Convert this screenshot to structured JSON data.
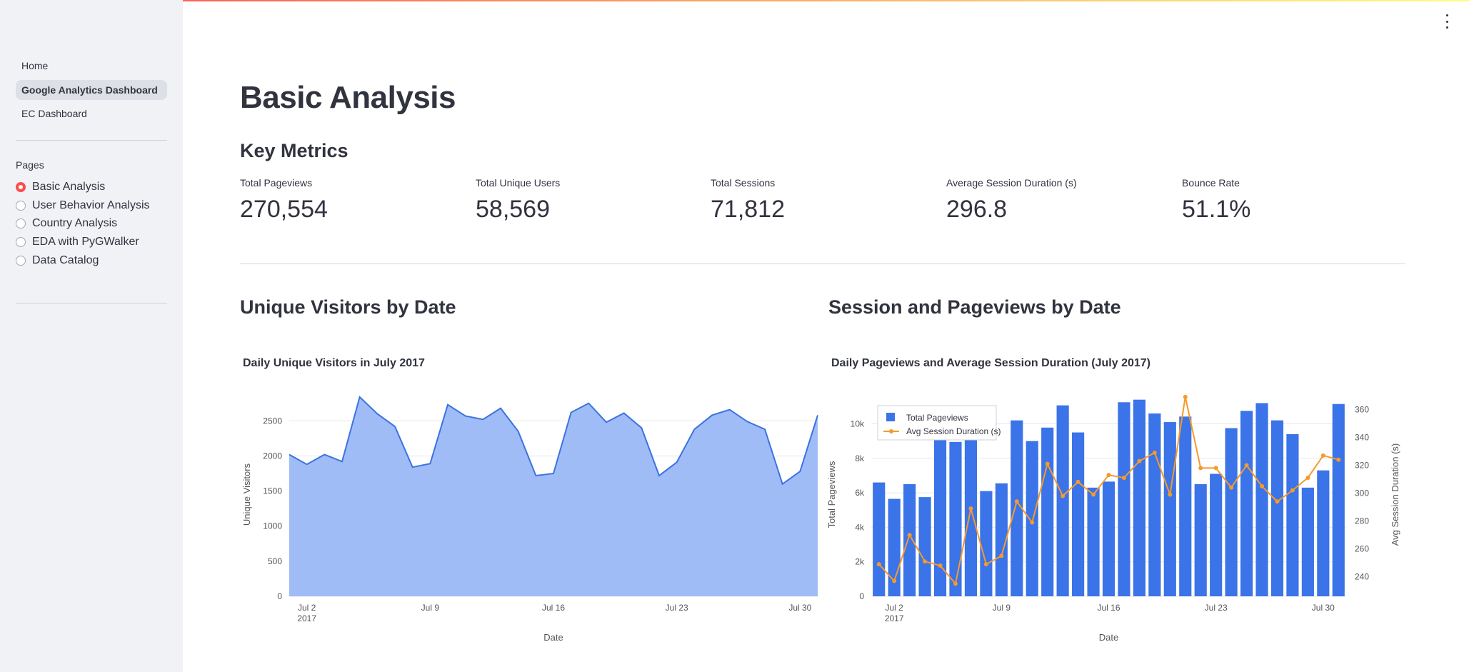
{
  "sidebar": {
    "nav": [
      {
        "label": "Home",
        "active": false
      },
      {
        "label": "Google Analytics Dashboard",
        "active": true
      },
      {
        "label": "EC Dashboard",
        "active": false
      }
    ],
    "pages_label": "Pages",
    "pages": [
      {
        "label": "Basic Analysis",
        "selected": true
      },
      {
        "label": "User Behavior Analysis",
        "selected": false
      },
      {
        "label": "Country Analysis",
        "selected": false
      },
      {
        "label": "EDA with PyGWalker",
        "selected": false
      },
      {
        "label": "Data Catalog",
        "selected": false
      }
    ]
  },
  "main": {
    "title": "Basic Analysis",
    "metrics_heading": "Key Metrics",
    "metrics": [
      {
        "label": "Total Pageviews",
        "value": "270,554"
      },
      {
        "label": "Total Unique Users",
        "value": "58,569"
      },
      {
        "label": "Total Sessions",
        "value": "71,812"
      },
      {
        "label": "Average Session Duration (s)",
        "value": "296.8"
      },
      {
        "label": "Bounce Rate",
        "value": "51.1%"
      }
    ],
    "section_left": "Unique Visitors by Date",
    "section_right": "Session and Pageviews by Date"
  },
  "colors": {
    "accent": "#ff4b4b",
    "area_fill": "#9ab8f5",
    "area_line": "#3b73e0",
    "bar": "#3b73e8",
    "line": "#f59a2c"
  },
  "chart_data": [
    {
      "type": "area",
      "title": "Daily Unique Visitors in July 2017",
      "xlabel": "Date",
      "ylabel": "Unique Visitors",
      "x": [
        "2017-07-01",
        "2017-07-02",
        "2017-07-03",
        "2017-07-04",
        "2017-07-05",
        "2017-07-06",
        "2017-07-07",
        "2017-07-08",
        "2017-07-09",
        "2017-07-10",
        "2017-07-11",
        "2017-07-12",
        "2017-07-13",
        "2017-07-14",
        "2017-07-15",
        "2017-07-16",
        "2017-07-17",
        "2017-07-18",
        "2017-07-19",
        "2017-07-20",
        "2017-07-21",
        "2017-07-22",
        "2017-07-23",
        "2017-07-24",
        "2017-07-25",
        "2017-07-26",
        "2017-07-27",
        "2017-07-28",
        "2017-07-29",
        "2017-07-30",
        "2017-07-31"
      ],
      "series": [
        {
          "values": [
            2020,
            1880,
            2020,
            1920,
            2840,
            2600,
            2420,
            1840,
            1890,
            2730,
            2570,
            2520,
            2680,
            2350,
            1720,
            1750,
            2620,
            2750,
            2480,
            2610,
            2400,
            1720,
            1910,
            2380,
            2580,
            2660,
            2490,
            2380,
            1600,
            1780,
            2580
          ]
        }
      ],
      "ylim": [
        0,
        2900
      ],
      "yticks": [
        "0",
        "500",
        "1000",
        "1500",
        "2000",
        "2500"
      ],
      "xticks": [
        "Jul 2",
        "Jul 9",
        "Jul 16",
        "Jul 23",
        "Jul 30"
      ],
      "xtick_year": "2017",
      "grid": true
    },
    {
      "type": "bar+line",
      "title": "Daily Pageviews and Average Session Duration (July 2017)",
      "xlabel": "Date",
      "ylabel": "Total Pageviews",
      "y2label": "Avg Session Duration (s)",
      "x": [
        "2017-07-01",
        "2017-07-02",
        "2017-07-03",
        "2017-07-04",
        "2017-07-05",
        "2017-07-06",
        "2017-07-07",
        "2017-07-08",
        "2017-07-09",
        "2017-07-10",
        "2017-07-11",
        "2017-07-12",
        "2017-07-13",
        "2017-07-14",
        "2017-07-15",
        "2017-07-16",
        "2017-07-17",
        "2017-07-18",
        "2017-07-19",
        "2017-07-20",
        "2017-07-21",
        "2017-07-22",
        "2017-07-23",
        "2017-07-24",
        "2017-07-25",
        "2017-07-26",
        "2017-07-27",
        "2017-07-28",
        "2017-07-29",
        "2017-07-30",
        "2017-07-31"
      ],
      "series": [
        {
          "name": "Total Pageviews",
          "axis": "left",
          "values": [
            6600,
            5650,
            6500,
            5750,
            9720,
            8950,
            9300,
            6100,
            6550,
            10200,
            9000,
            9780,
            11070,
            9500,
            6300,
            6650,
            11250,
            11400,
            10600,
            10100,
            10420,
            6500,
            7100,
            9750,
            10750,
            11200,
            10200,
            9400,
            6300,
            7300,
            11150
          ]
        },
        {
          "name": "Avg Session Duration (s)",
          "axis": "right",
          "values": [
            249,
            237,
            270,
            251,
            248,
            235,
            289,
            249,
            255,
            294,
            279,
            321,
            298,
            308,
            299,
            313,
            311,
            323,
            329,
            299,
            369,
            318,
            318,
            304,
            320,
            305,
            294,
            302,
            311,
            327,
            324
          ]
        }
      ],
      "ylim": [
        0,
        11800
      ],
      "yticks": [
        "0",
        "2k",
        "4k",
        "6k",
        "8k",
        "10k"
      ],
      "y2lim": [
        226,
        372
      ],
      "y2ticks": [
        "240",
        "260",
        "280",
        "300",
        "320",
        "340",
        "360"
      ],
      "xticks": [
        "Jul 2",
        "Jul 9",
        "Jul 16",
        "Jul 23",
        "Jul 30"
      ],
      "xtick_year": "2017",
      "legend": "top-left",
      "grid": true
    }
  ]
}
